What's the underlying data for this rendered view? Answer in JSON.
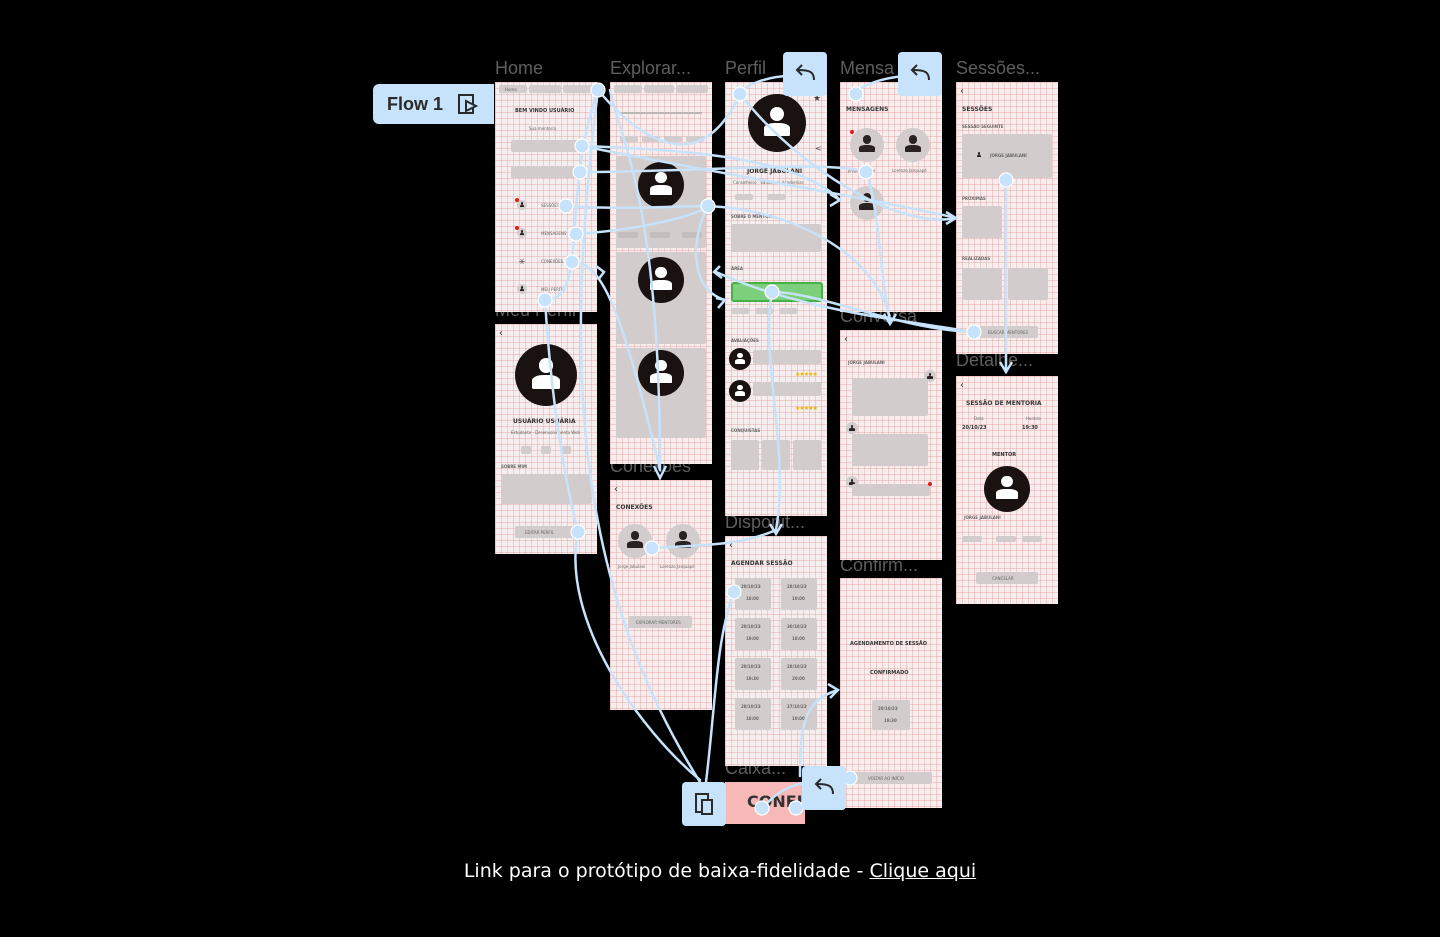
{
  "frames": {
    "home": "Home",
    "explorar": "Explorar...",
    "perfil": "Perfil",
    "mensagens": "Mensa",
    "sessoes": "Sessões...",
    "meu_perfil": "Meu Perfil",
    "conexoes": "Conexões",
    "conversa": "Conversa",
    "detalhes": "Detalhe...",
    "disponibilidade": "Disponit...",
    "confirmacao": "Confirm...",
    "caixa": "Caixa..."
  },
  "flow": {
    "label": "Flow 1"
  },
  "home_screen": {
    "tab_1": "Home",
    "welcome": "BEM VINDO USUÁRIO",
    "subtitle": "Sua mentoria",
    "item_sessoes": "SESSÕES",
    "item_mensagens": "MENSAGENS",
    "item_conexoes": "CONEXÕES",
    "item_perfil": "MEU PERFIL"
  },
  "perfil_screen": {
    "name": "JORGE JABULANI",
    "subtitle": "Conselheiro · Saúde em Academias",
    "section_sobre": "SOBRE O MENTOR",
    "section_area": "ÁREA",
    "section_avaliacoes": "AVALIAÇÕES",
    "section_conquistas": "CONQUISTAS"
  },
  "mensagens_screen": {
    "title": "MENSAGENS",
    "contact_1": "Jorge Jabulani",
    "contact_2": "Lorenzo Jarquapé"
  },
  "sessoes_screen": {
    "title": "SESSÕES",
    "next": "SESSÃO SEGUINTE",
    "mentor": "JORGE JABULANI",
    "section_proximas": "PRÓXIMAS",
    "section_realizadas": "REALIZADAS",
    "button": "BUSCAR MENTORES"
  },
  "meu_perfil_screen": {
    "name": "USUÁRIO USUÁRIA",
    "subtitle": "Estudante · Desenvolvimento Web",
    "section_sobre": "SOBRE MIM",
    "button": "EDITAR PERFIL"
  },
  "conexoes_screen": {
    "title": "CONEXÕES",
    "contact_1": "Jorge Jabulani",
    "contact_2": "Lorenzo Jarquapé",
    "button": "EXPLORAR MENTORES"
  },
  "conversa_screen": {
    "name": "JORGE JABULANI"
  },
  "detalhes_screen": {
    "title": "SESSÃO DE MENTORIA",
    "label_data": "Data",
    "label_horario": "Horário",
    "date": "20/10/23",
    "time": "19:30",
    "mentor_label": "MENTOR",
    "mentor_name": "JORGE JABULANI",
    "button": "CANCELAR"
  },
  "agendar_screen": {
    "title": "AGENDAR SESSÃO",
    "slots": [
      {
        "date": "20/10/23",
        "time": "18:00"
      },
      {
        "date": "28/10/23",
        "time": "19:00"
      },
      {
        "date": "20/10/23",
        "time": "19:00"
      },
      {
        "date": "30/10/23",
        "time": "18:00"
      },
      {
        "date": "20/10/23",
        "time": "19:30"
      },
      {
        "date": "28/10/23",
        "time": "20:00"
      },
      {
        "date": "28/10/23",
        "time": "18:00"
      },
      {
        "date": "27/10/23",
        "time": "19:00"
      }
    ]
  },
  "confirm_screen": {
    "title": "AGENDAMENTO DE SESSÃO",
    "status": "CONFIRMADO",
    "date": "20/10/23",
    "time": "19:30",
    "button": "VOLTAR AO INÍCIO"
  },
  "caixa_screen": {
    "label": "CONFIR"
  },
  "caption": {
    "text": "Link para o protótipo de baixa-fidelidade - ",
    "link": "Clique aqui"
  }
}
